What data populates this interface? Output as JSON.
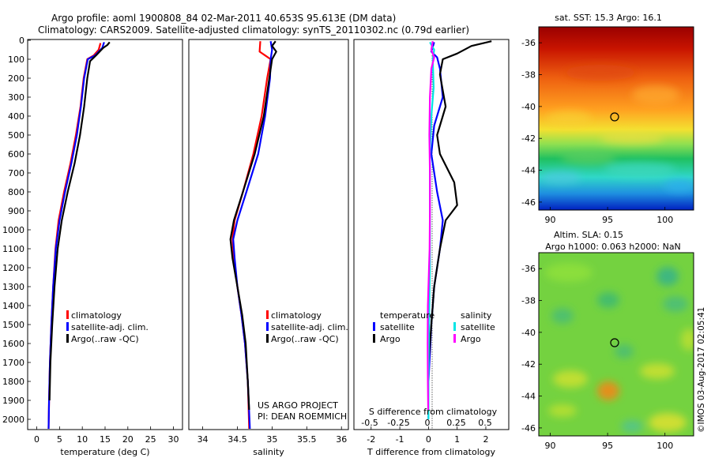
{
  "title_line1": "Argo profile: aoml 1900808_84 02-Mar-2011 40.653S 95.613E (DM data)",
  "title_line2": "Climatology: CARS2009. Satellite-adjusted climatology: synTS_20110302.nc (0.79d earlier)",
  "project_line1": "US ARGO PROJECT",
  "project_line2": "PI: DEAN ROEMMICH",
  "credit": "©IMOS 03-Aug-2017 02:05:41",
  "colors": {
    "climatology": "#ff0000",
    "satellite": "#0000ff",
    "argo": "#000000",
    "sat_salinity": "#00e5e5",
    "argo_salinity": "#ff00ff"
  },
  "chart_data": [
    {
      "type": "line",
      "xlabel": "temperature (deg C)",
      "xlim": [
        -2,
        32
      ],
      "xticks": [
        "0",
        "5",
        "10",
        "15",
        "20",
        "25",
        "30"
      ],
      "ylim": [
        0,
        2050
      ],
      "yticks": [
        "0",
        "100",
        "200",
        "300",
        "400",
        "500",
        "600",
        "700",
        "800",
        "900",
        "1000",
        "1100",
        "1200",
        "1300",
        "1400",
        "1500",
        "1600",
        "1700",
        "1800",
        "1900",
        "2000"
      ],
      "legend": [
        "climatology",
        "satellite-adj. clim.",
        "Argo(..raw -QC)"
      ],
      "series": [
        {
          "name": "climatology",
          "color": "#ff0000",
          "points": [
            [
              14,
              15
            ],
            [
              13.6,
              50
            ],
            [
              12.5,
              80
            ],
            [
              11.1,
              100
            ],
            [
              10.3,
              200
            ],
            [
              9.6,
              350
            ],
            [
              8.6,
              500
            ],
            [
              7.4,
              650
            ],
            [
              6,
              800
            ],
            [
              4.8,
              950
            ],
            [
              4.1,
              1100
            ],
            [
              3.6,
              1300
            ],
            [
              3.2,
              1500
            ],
            [
              2.9,
              1700
            ],
            [
              2.7,
              1900
            ],
            [
              2.6,
              2050
            ]
          ]
        },
        {
          "name": "satellite-adj. clim.",
          "color": "#0000ff",
          "points": [
            [
              14.8,
              10
            ],
            [
              14.4,
              40
            ],
            [
              12.8,
              80
            ],
            [
              11.2,
              100
            ],
            [
              10.4,
              200
            ],
            [
              9.7,
              350
            ],
            [
              8.8,
              500
            ],
            [
              7.6,
              650
            ],
            [
              6.2,
              800
            ],
            [
              5,
              950
            ],
            [
              4.2,
              1100
            ],
            [
              3.6,
              1300
            ],
            [
              3.2,
              1500
            ],
            [
              2.9,
              1700
            ],
            [
              2.7,
              1900
            ],
            [
              2.6,
              2050
            ]
          ]
        },
        {
          "name": "Argo(..raw -QC)",
          "color": "#000000",
          "points": [
            [
              16,
              10
            ],
            [
              15.5,
              25
            ],
            [
              14.6,
              40
            ],
            [
              13,
              80
            ],
            [
              11.7,
              110
            ],
            [
              11.1,
              200
            ],
            [
              10.4,
              350
            ],
            [
              9.5,
              500
            ],
            [
              8.3,
              650
            ],
            [
              6.8,
              800
            ],
            [
              5.5,
              950
            ],
            [
              4.6,
              1100
            ],
            [
              3.9,
              1300
            ],
            [
              3.4,
              1500
            ],
            [
              3,
              1700
            ],
            [
              2.8,
              1900
            ]
          ]
        }
      ]
    },
    {
      "type": "line",
      "xlabel": "salinity",
      "xlim": [
        33.8,
        36.1
      ],
      "xticks": [
        "34",
        "34.5",
        "35",
        "35.5",
        "36"
      ],
      "ylim": [
        0,
        2050
      ],
      "legend": [
        "climatology",
        "satellite-adj. clim.",
        "Argo(..raw -QC)"
      ],
      "series": [
        {
          "name": "climatology",
          "color": "#ff0000",
          "points": [
            [
              34.83,
              5
            ],
            [
              34.82,
              60
            ],
            [
              34.9,
              80
            ],
            [
              34.98,
              100
            ],
            [
              34.93,
              200
            ],
            [
              34.85,
              400
            ],
            [
              34.73,
              600
            ],
            [
              34.58,
              800
            ],
            [
              34.46,
              950
            ],
            [
              34.43,
              1050
            ],
            [
              34.45,
              1150
            ],
            [
              34.5,
              1300
            ],
            [
              34.56,
              1450
            ],
            [
              34.61,
              1600
            ],
            [
              34.65,
              1800
            ],
            [
              34.67,
              2050
            ]
          ]
        },
        {
          "name": "satellite-adj. clim.",
          "color": "#0000ff",
          "points": [
            [
              34.98,
              5
            ],
            [
              35.0,
              50
            ],
            [
              34.98,
              100
            ],
            [
              34.97,
              200
            ],
            [
              34.9,
              400
            ],
            [
              34.8,
              600
            ],
            [
              34.63,
              800
            ],
            [
              34.5,
              950
            ],
            [
              34.44,
              1050
            ],
            [
              34.46,
              1150
            ],
            [
              34.5,
              1300
            ],
            [
              34.56,
              1450
            ],
            [
              34.61,
              1600
            ],
            [
              34.65,
              1800
            ],
            [
              34.68,
              2050
            ]
          ]
        },
        {
          "name": "Argo(..raw -QC)",
          "color": "#000000",
          "points": [
            [
              35.05,
              5
            ],
            [
              35.0,
              30
            ],
            [
              35.06,
              60
            ],
            [
              35.0,
              100
            ],
            [
              34.96,
              200
            ],
            [
              34.88,
              400
            ],
            [
              34.75,
              600
            ],
            [
              34.58,
              800
            ],
            [
              34.45,
              950
            ],
            [
              34.4,
              1050
            ],
            [
              34.43,
              1150
            ],
            [
              34.5,
              1300
            ],
            [
              34.57,
              1450
            ],
            [
              34.62,
              1600
            ],
            [
              34.65,
              1800
            ],
            [
              34.67,
              1950
            ]
          ]
        }
      ]
    },
    {
      "type": "line",
      "xlabel": "T difference from climatology",
      "xlabel2": "S difference from climatology",
      "xlim": [
        -2.6,
        2.8
      ],
      "xticks": [
        "-2",
        "-1",
        "0",
        "1",
        "2"
      ],
      "xticks_s": [
        "-0.5",
        "-0.25",
        "0",
        "0.25",
        "0.5"
      ],
      "ylim": [
        0,
        2050
      ],
      "legend": {
        "heading_t": "temperature",
        "heading_s": "salinity",
        "items": [
          "satellite",
          "Argo",
          "satellite",
          "Argo"
        ]
      },
      "series": [
        {
          "name": "satellite",
          "color": "#0000ff",
          "points": [
            [
              0.2,
              10
            ],
            [
              0.1,
              60
            ],
            [
              0.3,
              90
            ],
            [
              0.4,
              150
            ],
            [
              0.5,
              300
            ],
            [
              0.2,
              450
            ],
            [
              0.1,
              600
            ],
            [
              0.3,
              800
            ],
            [
              0.5,
              950
            ],
            [
              0.4,
              1100
            ],
            [
              0.2,
              1300
            ],
            [
              0.1,
              1500
            ],
            [
              0,
              1800
            ],
            [
              0,
              2000
            ]
          ]
        },
        {
          "name": "Argo",
          "color": "#000000",
          "points": [
            [
              2.2,
              5
            ],
            [
              1.5,
              30
            ],
            [
              1,
              70
            ],
            [
              0.5,
              100
            ],
            [
              0.4,
              180
            ],
            [
              0.6,
              350
            ],
            [
              0.3,
              500
            ],
            [
              0.4,
              600
            ],
            [
              0.9,
              750
            ],
            [
              1,
              870
            ],
            [
              0.6,
              950
            ],
            [
              0.4,
              1100
            ],
            [
              0.2,
              1300
            ],
            [
              0.1,
              1500
            ],
            [
              0,
              1700
            ],
            [
              0,
              1950
            ]
          ]
        },
        {
          "name": "satellite",
          "color": "#00e5e5",
          "points": [
            [
              0.05,
              10
            ],
            [
              0.2,
              50
            ],
            [
              0.15,
              100
            ],
            [
              0.18,
              250
            ],
            [
              0.1,
              400
            ],
            [
              0.05,
              600
            ],
            [
              0.05,
              800
            ],
            [
              0.05,
              1000
            ],
            [
              0.05,
              1200
            ],
            [
              0.02,
              1500
            ],
            [
              0,
              1800
            ],
            [
              0,
              2000
            ]
          ]
        },
        {
          "name": "Argo",
          "color": "#ff00ff",
          "points": [
            [
              0.15,
              5
            ],
            [
              0.1,
              50
            ],
            [
              0.2,
              90
            ],
            [
              0.1,
              150
            ],
            [
              0.05,
              300
            ],
            [
              0.03,
              500
            ],
            [
              0.05,
              700
            ],
            [
              0.05,
              900
            ],
            [
              0.04,
              1100
            ],
            [
              -0.02,
              1400
            ],
            [
              -0.03,
              1600
            ],
            [
              -0.02,
              1800
            ],
            [
              -0.01,
              1950
            ]
          ]
        }
      ]
    },
    {
      "type": "heatmap",
      "title": "sat. SST: 15.3 Argo: 16.1",
      "xlim": [
        89,
        102.5
      ],
      "ylim": [
        -46.5,
        -35
      ],
      "xticks": [
        "90",
        "95",
        "100"
      ],
      "yticks": [
        "-36",
        "-38",
        "-40",
        "-42",
        "-44",
        "-46"
      ],
      "marker": {
        "lon": 95.613,
        "lat": -40.653
      }
    },
    {
      "type": "heatmap",
      "title": "Altim. SLA: 0.15",
      "subtitle": "Argo h1000: 0.063 h2000: NaN",
      "xlim": [
        89,
        102.5
      ],
      "ylim": [
        -46.5,
        -35
      ],
      "xticks": [
        "90",
        "95",
        "100"
      ],
      "yticks": [
        "-36",
        "-38",
        "-40",
        "-42",
        "-44",
        "-46"
      ],
      "marker": {
        "lon": 95.613,
        "lat": -40.653
      }
    }
  ]
}
